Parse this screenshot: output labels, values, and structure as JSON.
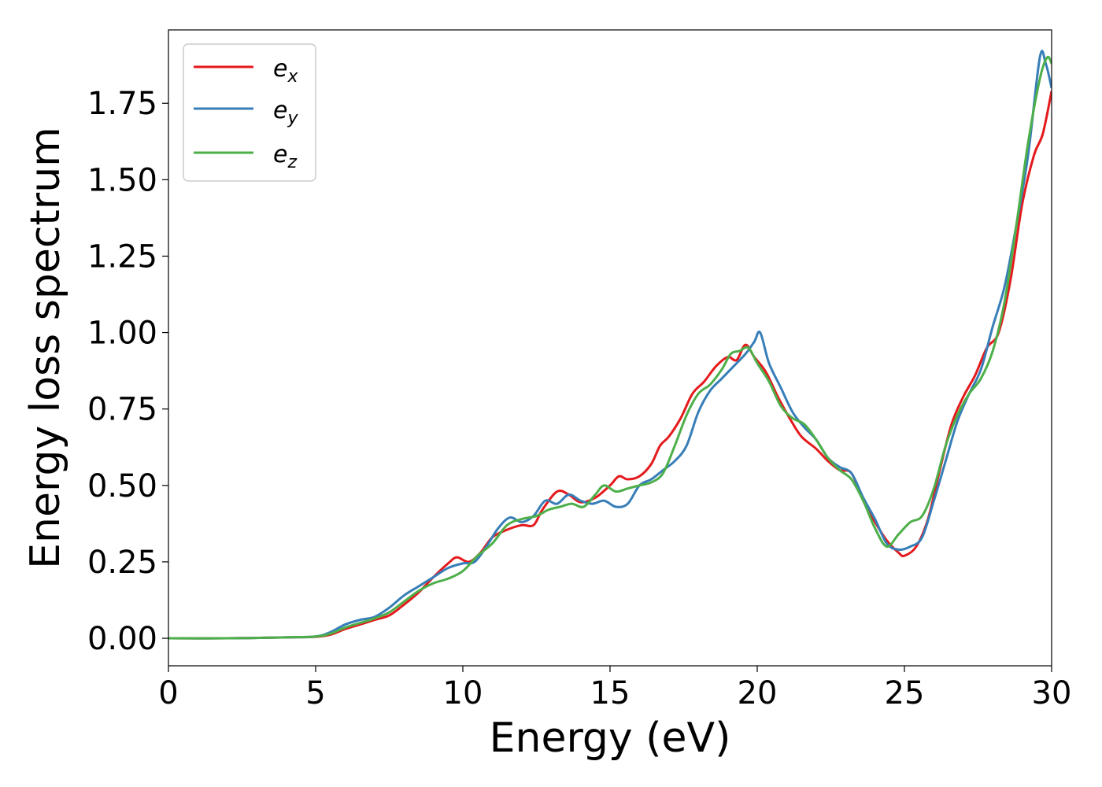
{
  "chart_data": {
    "type": "line",
    "xlabel": "Energy (eV)",
    "ylabel": "Energy loss spectrum",
    "xlim": [
      0,
      30
    ],
    "ylim": [
      -0.09,
      1.99
    ],
    "xticks": [
      0,
      5,
      10,
      15,
      20,
      25,
      30
    ],
    "xtick_labels": [
      "0",
      "5",
      "10",
      "15",
      "20",
      "25",
      "30"
    ],
    "yticks": [
      0.0,
      0.25,
      0.5,
      0.75,
      1.0,
      1.25,
      1.5,
      1.75
    ],
    "ytick_labels": [
      "0.00",
      "0.25",
      "0.50",
      "0.75",
      "1.00",
      "1.25",
      "1.50",
      "1.75"
    ],
    "grid": false,
    "legend_position": "top-left",
    "series": [
      {
        "name_base": "e",
        "name_sub": "x",
        "color": "#e41a1c",
        "x": [
          0,
          2,
          4,
          5,
          5.5,
          6,
          6.5,
          7,
          7.5,
          8,
          8.5,
          9,
          9.5,
          9.8,
          10.2,
          10.6,
          11,
          11.5,
          12,
          12.4,
          12.7,
          13.2,
          13.6,
          14,
          14.5,
          15,
          15.3,
          15.6,
          16,
          16.4,
          16.7,
          17,
          17.4,
          17.8,
          18.2,
          18.6,
          19,
          19.3,
          19.6,
          19.9,
          20.3,
          20.7,
          21.1,
          21.5,
          22,
          22.4,
          22.8,
          23.2,
          23.6,
          24,
          24.4,
          24.8,
          25,
          25.4,
          25.8,
          26.2,
          26.6,
          27,
          27.4,
          27.8,
          28.2,
          28.6,
          29,
          29.4,
          29.7,
          30
        ],
        "y": [
          0,
          0,
          0.003,
          0.005,
          0.012,
          0.03,
          0.045,
          0.06,
          0.075,
          0.11,
          0.15,
          0.2,
          0.245,
          0.265,
          0.25,
          0.28,
          0.33,
          0.355,
          0.37,
          0.37,
          0.42,
          0.48,
          0.47,
          0.445,
          0.46,
          0.5,
          0.53,
          0.52,
          0.53,
          0.57,
          0.63,
          0.66,
          0.72,
          0.8,
          0.84,
          0.89,
          0.92,
          0.91,
          0.96,
          0.92,
          0.87,
          0.79,
          0.72,
          0.66,
          0.62,
          0.58,
          0.55,
          0.54,
          0.45,
          0.38,
          0.32,
          0.28,
          0.27,
          0.3,
          0.39,
          0.55,
          0.7,
          0.79,
          0.86,
          0.95,
          1.0,
          1.17,
          1.42,
          1.58,
          1.65,
          1.79
        ]
      },
      {
        "name_base": "e",
        "name_sub": "y",
        "color": "#377eb8",
        "x": [
          0,
          2,
          4,
          5,
          5.5,
          6,
          6.5,
          7,
          7.5,
          8,
          8.5,
          9,
          9.5,
          10,
          10.4,
          10.8,
          11.2,
          11.6,
          12,
          12.4,
          12.8,
          13.2,
          13.6,
          14,
          14.4,
          14.8,
          15.2,
          15.6,
          16,
          16.4,
          16.8,
          17.2,
          17.6,
          18,
          18.4,
          18.8,
          19.2,
          19.6,
          19.9,
          20.1,
          20.4,
          20.8,
          21.2,
          21.6,
          22,
          22.4,
          22.8,
          23.2,
          23.6,
          24,
          24.4,
          24.8,
          25.2,
          25.6,
          26,
          26.4,
          26.8,
          27.2,
          27.6,
          28,
          28.4,
          28.8,
          29.2,
          29.6,
          29.8,
          30
        ],
        "y": [
          0,
          0,
          0.003,
          0.006,
          0.02,
          0.045,
          0.06,
          0.07,
          0.1,
          0.14,
          0.17,
          0.2,
          0.23,
          0.245,
          0.25,
          0.3,
          0.36,
          0.395,
          0.38,
          0.4,
          0.45,
          0.44,
          0.47,
          0.45,
          0.44,
          0.45,
          0.43,
          0.44,
          0.5,
          0.52,
          0.55,
          0.58,
          0.63,
          0.74,
          0.81,
          0.85,
          0.89,
          0.93,
          0.97,
          1.0,
          0.9,
          0.82,
          0.74,
          0.69,
          0.65,
          0.59,
          0.56,
          0.54,
          0.46,
          0.39,
          0.31,
          0.29,
          0.3,
          0.33,
          0.45,
          0.58,
          0.71,
          0.8,
          0.88,
          1.02,
          1.15,
          1.35,
          1.58,
          1.9,
          1.88,
          1.8
        ]
      },
      {
        "name_base": "e",
        "name_sub": "z",
        "color": "#4daf4a",
        "x": [
          0,
          2,
          4,
          5,
          5.5,
          6,
          6.5,
          7,
          7.5,
          8,
          8.5,
          9,
          9.5,
          10,
          10.5,
          11,
          11.5,
          12,
          12.5,
          12.9,
          13.3,
          13.7,
          14.1,
          14.5,
          14.8,
          15.2,
          15.6,
          16,
          16.4,
          16.8,
          17.2,
          17.6,
          18,
          18.4,
          18.8,
          19.1,
          19.4,
          19.7,
          20,
          20.4,
          20.8,
          21.2,
          21.6,
          22,
          22.4,
          22.8,
          23.2,
          23.6,
          24,
          24.4,
          24.8,
          25.2,
          25.6,
          26,
          26.4,
          26.8,
          27.2,
          27.6,
          28,
          28.4,
          28.8,
          29.2,
          29.6,
          29.85,
          30
        ],
        "y": [
          0,
          0,
          0.003,
          0.006,
          0.015,
          0.035,
          0.05,
          0.065,
          0.085,
          0.12,
          0.155,
          0.18,
          0.195,
          0.22,
          0.27,
          0.31,
          0.37,
          0.39,
          0.4,
          0.42,
          0.43,
          0.44,
          0.43,
          0.47,
          0.5,
          0.48,
          0.49,
          0.5,
          0.51,
          0.54,
          0.63,
          0.73,
          0.8,
          0.83,
          0.88,
          0.93,
          0.94,
          0.95,
          0.9,
          0.84,
          0.76,
          0.72,
          0.7,
          0.65,
          0.59,
          0.55,
          0.52,
          0.45,
          0.36,
          0.3,
          0.34,
          0.38,
          0.4,
          0.49,
          0.63,
          0.73,
          0.8,
          0.85,
          0.94,
          1.1,
          1.35,
          1.62,
          1.83,
          1.9,
          1.88
        ]
      }
    ]
  }
}
